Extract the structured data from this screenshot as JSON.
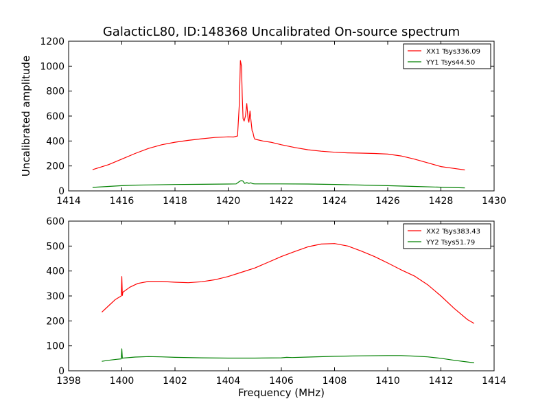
{
  "figure": {
    "title": "GalacticL80, ID:148368 Uncalibrated On-source spectrum",
    "ylabel": "Uncalibrated amplitude",
    "xlabel": "Frequency (MHz)"
  },
  "chart_data": [
    {
      "type": "line",
      "title": "GalacticL80, ID:148368 Uncalibrated On-source spectrum",
      "xlabel": "",
      "ylabel": "Uncalibrated amplitude",
      "xlim": [
        1414,
        1430
      ],
      "ylim": [
        0,
        1200
      ],
      "xticks": [
        1414,
        1416,
        1418,
        1420,
        1422,
        1424,
        1426,
        1428,
        1430
      ],
      "yticks": [
        0,
        200,
        400,
        600,
        800,
        1000,
        1200
      ],
      "legend_position": "top-right",
      "series": [
        {
          "name": "XX1 Tsys336.09",
          "color": "#ff0000",
          "x": [
            1414.9,
            1415.5,
            1416.0,
            1416.5,
            1417.0,
            1417.5,
            1418.0,
            1418.5,
            1419.0,
            1419.5,
            1420.0,
            1420.2,
            1420.35,
            1420.42,
            1420.46,
            1420.5,
            1420.53,
            1420.56,
            1420.6,
            1420.65,
            1420.7,
            1420.75,
            1420.78,
            1420.82,
            1420.86,
            1420.9,
            1420.93,
            1420.97,
            1421.0,
            1421.1,
            1421.3,
            1421.6,
            1422.0,
            1422.5,
            1423.0,
            1423.5,
            1424.0,
            1424.5,
            1425.0,
            1425.5,
            1426.0,
            1426.5,
            1427.0,
            1427.5,
            1428.0,
            1428.5,
            1428.9
          ],
          "values": [
            170,
            210,
            255,
            300,
            340,
            370,
            390,
            405,
            418,
            428,
            433,
            432,
            440,
            700,
            1045,
            1000,
            760,
            580,
            560,
            600,
            700,
            570,
            550,
            640,
            560,
            480,
            470,
            430,
            415,
            410,
            400,
            390,
            370,
            348,
            330,
            318,
            310,
            305,
            303,
            300,
            295,
            280,
            255,
            225,
            195,
            180,
            168
          ]
        },
        {
          "name": "YY1 Tsys44.50",
          "color": "#008000",
          "x": [
            1414.9,
            1415.5,
            1416.0,
            1416.5,
            1417.0,
            1418.0,
            1419.0,
            1420.0,
            1420.3,
            1420.42,
            1420.48,
            1420.55,
            1420.62,
            1420.7,
            1420.78,
            1420.85,
            1420.92,
            1421.0,
            1421.5,
            1422.0,
            1423.0,
            1424.0,
            1425.0,
            1426.0,
            1427.0,
            1428.0,
            1428.9
          ],
          "values": [
            28,
            36,
            42,
            46,
            48,
            51,
            53,
            55,
            56,
            75,
            82,
            80,
            60,
            66,
            60,
            65,
            58,
            56,
            56,
            56,
            55,
            52,
            47,
            42,
            36,
            30,
            24
          ]
        }
      ]
    },
    {
      "type": "line",
      "title": "",
      "xlabel": "Frequency (MHz)",
      "ylabel": "",
      "xlim": [
        1398,
        1414
      ],
      "ylim": [
        0,
        600
      ],
      "xticks": [
        1398,
        1400,
        1402,
        1404,
        1406,
        1408,
        1410,
        1412,
        1414
      ],
      "yticks": [
        0,
        100,
        200,
        300,
        400,
        500,
        600
      ],
      "legend_position": "top-right",
      "series": [
        {
          "name": "XX2 Tsys383.43",
          "color": "#ff0000",
          "x": [
            1399.25,
            1399.5,
            1399.75,
            1399.98,
            1400.0,
            1400.02,
            1400.04,
            1400.3,
            1400.6,
            1401.0,
            1401.5,
            1402.0,
            1402.5,
            1403.0,
            1403.5,
            1404.0,
            1404.5,
            1405.0,
            1405.5,
            1406.0,
            1406.5,
            1407.0,
            1407.5,
            1408.0,
            1408.5,
            1409.0,
            1409.5,
            1410.0,
            1410.5,
            1411.0,
            1411.5,
            1412.0,
            1412.5,
            1413.0,
            1413.25
          ],
          "values": [
            235,
            260,
            285,
            300,
            378,
            302,
            315,
            335,
            350,
            358,
            358,
            355,
            353,
            357,
            365,
            378,
            395,
            412,
            435,
            458,
            478,
            497,
            508,
            510,
            500,
            480,
            458,
            432,
            405,
            380,
            345,
            300,
            250,
            205,
            190
          ]
        },
        {
          "name": "YY2 Tsys51.79",
          "color": "#008000",
          "x": [
            1399.25,
            1399.5,
            1399.8,
            1399.98,
            1400.0,
            1400.02,
            1400.04,
            1400.5,
            1401.0,
            1401.5,
            1402.0,
            1403.0,
            1404.0,
            1405.0,
            1406.0,
            1406.2,
            1406.4,
            1407.0,
            1408.0,
            1409.0,
            1410.0,
            1410.5,
            1411.0,
            1411.5,
            1412.0,
            1412.5,
            1413.25
          ],
          "values": [
            38,
            42,
            46,
            48,
            88,
            50,
            51,
            55,
            57,
            56,
            54,
            52,
            51,
            51,
            52,
            54,
            53,
            55,
            58,
            60,
            61,
            61,
            59,
            56,
            50,
            42,
            32
          ]
        }
      ]
    }
  ]
}
